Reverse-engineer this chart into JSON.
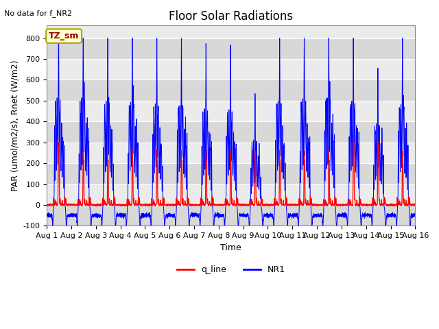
{
  "title": "Floor Solar Radiations",
  "no_data_text": "No data for f_NR2",
  "xlabel": "Time",
  "ylabel": "PAR (umol/m2/s), Rnet (W/m2)",
  "ylim": [
    -100,
    860
  ],
  "yticks": [
    -100,
    0,
    100,
    200,
    300,
    400,
    500,
    600,
    700,
    800
  ],
  "xtick_labels": [
    "Aug 1",
    "Aug 2",
    "Aug 3",
    "Aug 4",
    "Aug 5",
    "Aug 6",
    "Aug 7",
    "Aug 8",
    "Aug 9",
    "Aug 10",
    "Aug 11",
    "Aug 12",
    "Aug 13",
    "Aug 14",
    "Aug 15",
    "Aug 16"
  ],
  "legend_box_label": "TZ_sm",
  "legend_entries": [
    "q_line",
    "NR1"
  ],
  "legend_colors": [
    "#ff0000",
    "#0000ff"
  ],
  "line_nr1_color": "#0000ff",
  "line_q_color": "#ff0000",
  "bg_color_light": "#ebebeb",
  "bg_color_dark": "#d8d8d8",
  "title_fontsize": 12,
  "axis_label_fontsize": 9,
  "tick_fontsize": 8,
  "figsize": [
    6.4,
    4.8
  ],
  "dpi": 100
}
